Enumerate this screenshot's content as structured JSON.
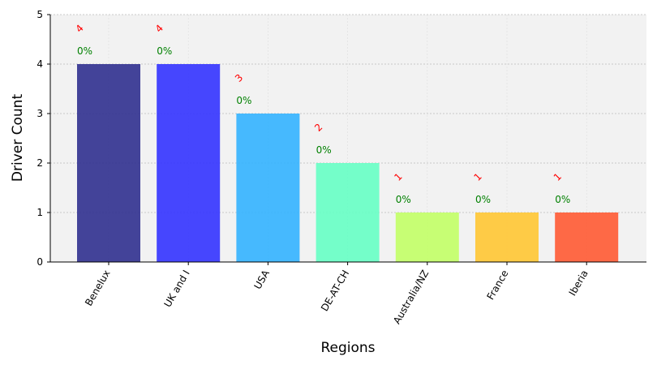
{
  "chart_data": {
    "type": "bar",
    "categories": [
      "Benelux",
      "UK and I",
      "USA",
      "DE-AT-CH",
      "Australia/NZ",
      "France",
      "Iberia"
    ],
    "values": [
      4,
      4,
      3,
      2,
      1,
      1,
      1
    ],
    "count_labels": [
      "4",
      "4",
      "3",
      "2",
      "1",
      "1",
      "1"
    ],
    "pct_labels": [
      "0%",
      "0%",
      "0%",
      "0%",
      "0%",
      "0%",
      "0%"
    ],
    "bar_colors": [
      "#30308f",
      "#3333ff",
      "#33b3ff",
      "#66ffc4",
      "#c2ff66",
      "#ffc733",
      "#ff5a33"
    ],
    "count_label_color": "#ff0000",
    "pct_label_color": "#008000",
    "plot_background": "#f2f2f2",
    "xlabel": "Regions",
    "ylabel": "Driver Count",
    "ylim": [
      0,
      5
    ],
    "yticks": [
      0,
      1,
      2,
      3,
      4,
      5
    ],
    "grid": true
  }
}
